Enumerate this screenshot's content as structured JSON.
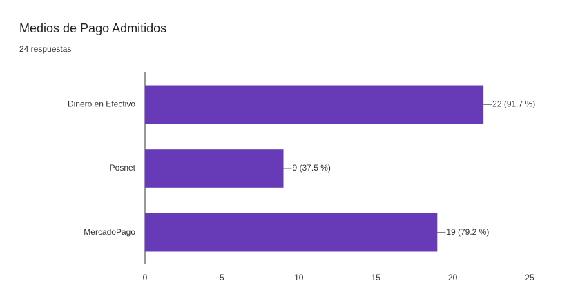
{
  "chart_data": {
    "type": "bar",
    "orientation": "horizontal",
    "title": "Medios de Pago Admitidos",
    "subtitle": "24 respuestas",
    "categories": [
      "Dinero en Efectivo",
      "Posnet",
      "MercadoPago"
    ],
    "values": [
      22,
      9,
      19
    ],
    "value_labels": [
      "22 (91.7 %)",
      "9 (37.5 %)",
      "19 (79.2 %)"
    ],
    "color": "#673ab7",
    "xlim": [
      0,
      25
    ],
    "xticks": [
      0,
      5,
      10,
      15,
      20,
      25
    ],
    "grid": false
  }
}
